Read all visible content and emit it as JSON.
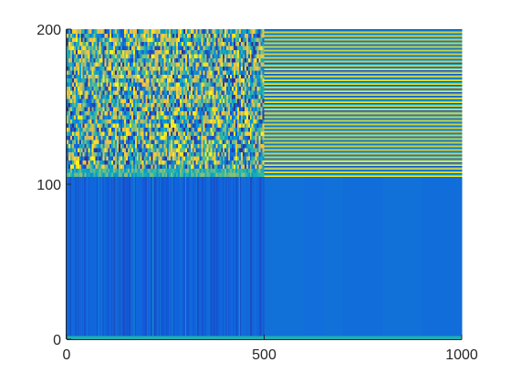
{
  "chart_data": {
    "type": "heatmap",
    "title": "",
    "xlabel": "",
    "ylabel": "",
    "xlim": [
      0,
      1000
    ],
    "ylim": [
      0,
      200
    ],
    "x_ticks": [
      {
        "value": 0,
        "label": "0"
      },
      {
        "value": 500,
        "label": "500"
      },
      {
        "value": 1000,
        "label": "1000"
      }
    ],
    "y_ticks": [
      {
        "value": 0,
        "label": "0"
      },
      {
        "value": 100,
        "label": "100"
      },
      {
        "value": 200,
        "label": "200"
      }
    ],
    "colormap": "parula",
    "colormap_stops": [
      "#352a87",
      "#0f5cdd",
      "#1481d6",
      "#06a4ca",
      "#2eb7a4",
      "#87bf77",
      "#d1bb59",
      "#fec832",
      "#f9fb0e"
    ],
    "grid": false,
    "colorbar": false,
    "regions": [
      {
        "name": "lower-left",
        "x_range": [
          0,
          500
        ],
        "y_range": [
          0,
          105
        ],
        "pattern": "vertical stripes",
        "level_range": [
          0.08,
          0.2
        ]
      },
      {
        "name": "upper-left",
        "x_range": [
          0,
          500
        ],
        "y_range": [
          105,
          200
        ],
        "pattern": "noisy",
        "level_range": [
          0.0,
          1.0
        ]
      },
      {
        "name": "lower-right",
        "x_range": [
          500,
          1000
        ],
        "y_range": [
          0,
          105
        ],
        "pattern": "uniform",
        "level_range": [
          0.18,
          0.2
        ]
      },
      {
        "name": "upper-right",
        "x_range": [
          500,
          1000
        ],
        "y_range": [
          105,
          200
        ],
        "pattern": "horizontal bands",
        "bands": 40,
        "level_range": [
          0.1,
          0.95
        ]
      }
    ],
    "bottom_strip": {
      "y_range": [
        0,
        2
      ],
      "level": 0.45
    }
  }
}
